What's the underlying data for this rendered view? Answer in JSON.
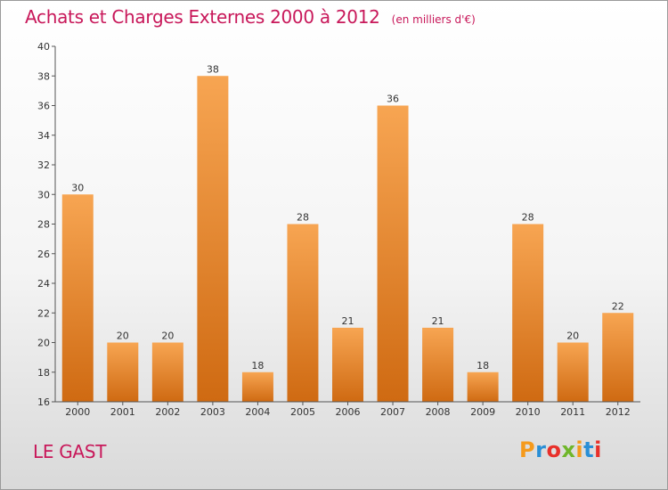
{
  "header": {
    "title": "Achats et Charges Externes 2000 à 2012",
    "unit_note": "(en milliers d'€)"
  },
  "footer": {
    "commune": "LE GAST",
    "logo": {
      "letters": [
        "P",
        "r",
        "o",
        "x",
        "i",
        "t",
        "i"
      ],
      "colors": [
        "#f59a1c",
        "#2a8fd6",
        "#e8302a",
        "#70b62a",
        "#f59a1c",
        "#2a8fd6",
        "#e8302a"
      ]
    }
  },
  "colors": {
    "title": "#c8185a",
    "bar_light": "#f7a552",
    "bar_dark": "#cf6a12",
    "axis": "#555555"
  },
  "chart_data": {
    "type": "bar",
    "title": "Achats et Charges Externes 2000 à 2012",
    "subtitle": "(en milliers d'€)",
    "categories": [
      "2000",
      "2001",
      "2002",
      "2003",
      "2004",
      "2005",
      "2006",
      "2007",
      "2008",
      "2009",
      "2010",
      "2011",
      "2012"
    ],
    "values": [
      30,
      20,
      20,
      38,
      18,
      28,
      21,
      36,
      21,
      18,
      28,
      20,
      22
    ],
    "ylim": [
      16,
      40
    ],
    "yticks": [
      16,
      18,
      20,
      22,
      24,
      26,
      28,
      30,
      32,
      34,
      36,
      38,
      40
    ],
    "xlabel": "",
    "ylabel": "",
    "grid": false,
    "legend": "none"
  }
}
